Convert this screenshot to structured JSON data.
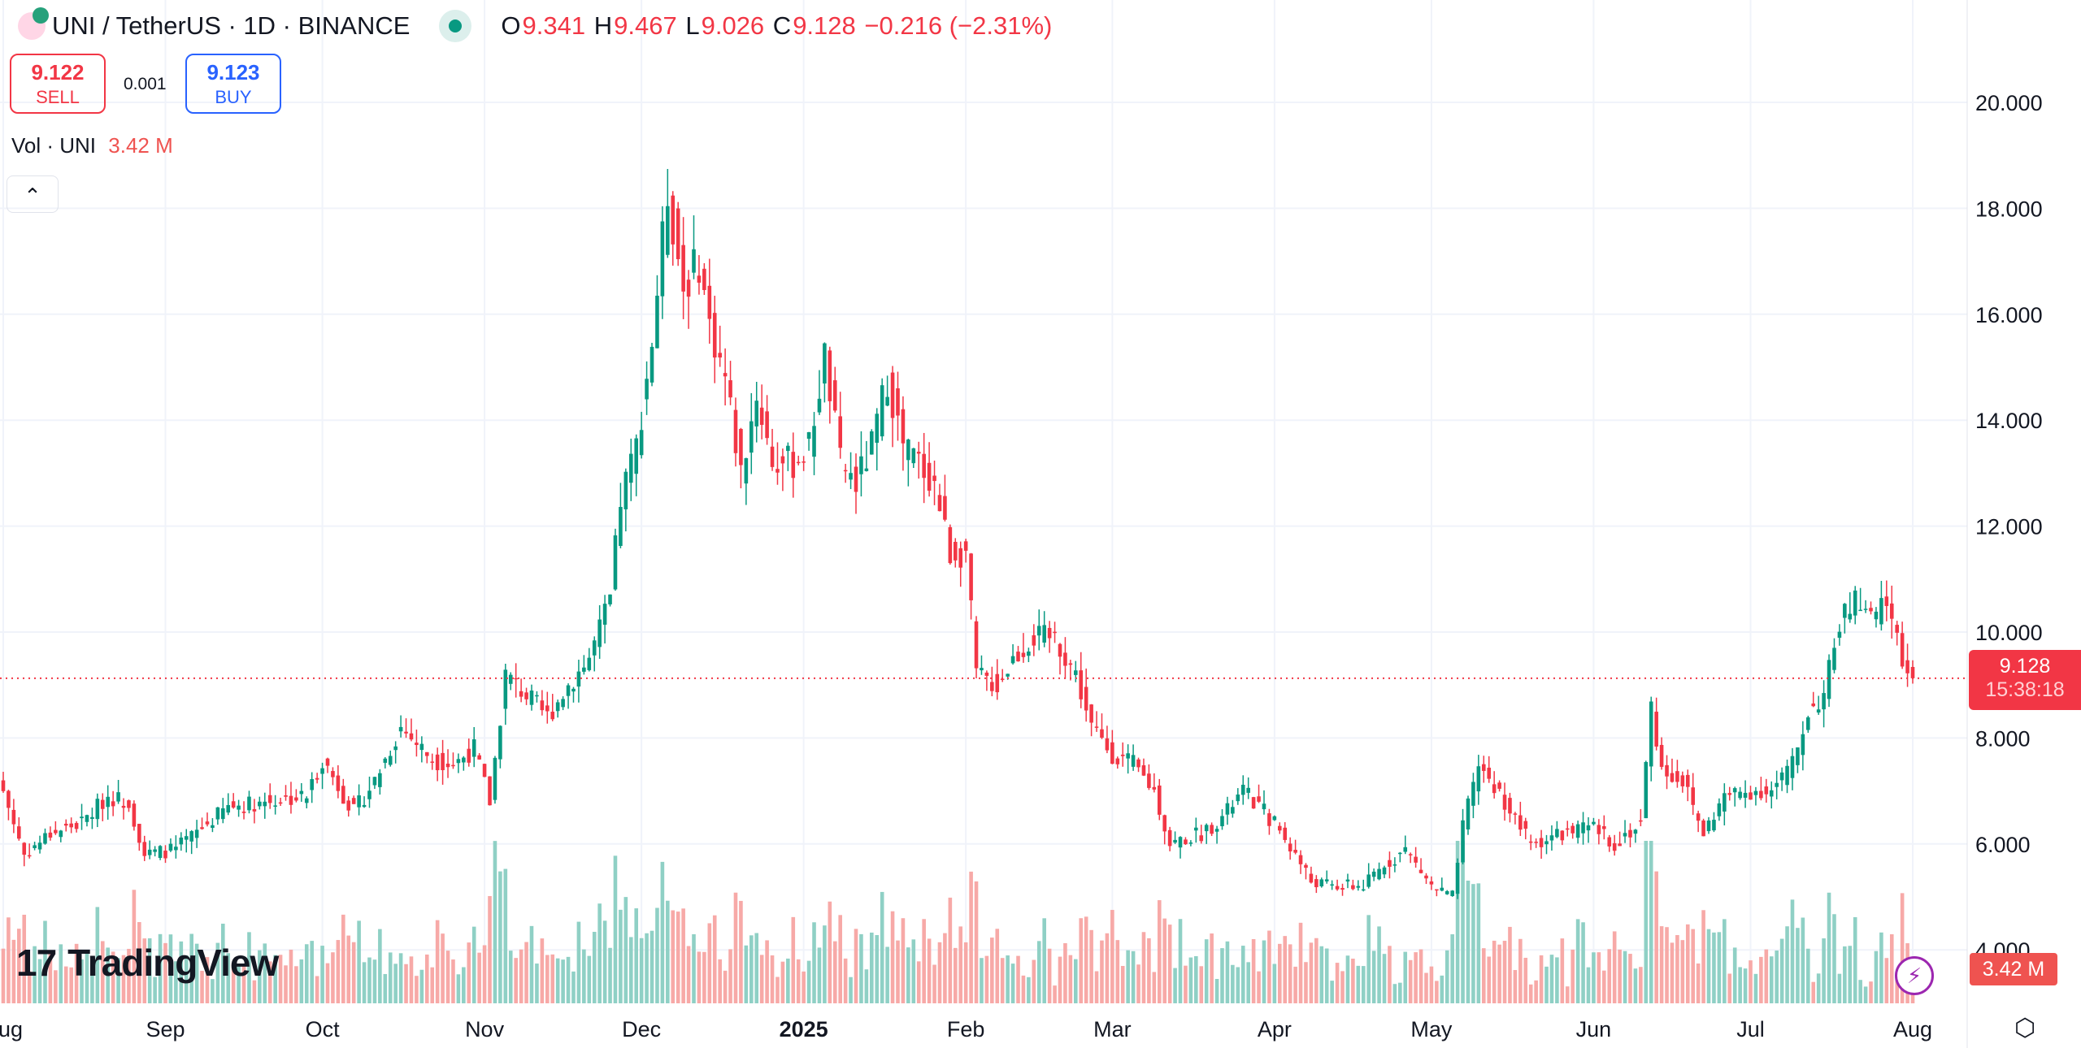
{
  "header": {
    "symbol": "UNI / TetherUS · 1D · BINANCE",
    "o_label": "O",
    "o": "9.341",
    "h_label": "H",
    "h": "9.467",
    "l_label": "L",
    "l": "9.026",
    "c_label": "C",
    "c": "9.128",
    "change": "−0.216 (−2.31%)"
  },
  "quote": {
    "sell_price": "9.122",
    "sell_label": "SELL",
    "spread": "0.001",
    "buy_price": "9.123",
    "buy_label": "BUY"
  },
  "volume_legend": {
    "label": "Vol · UNI",
    "value": "3.42 M"
  },
  "last_price": {
    "price": "9.128",
    "countdown": "15:38:18"
  },
  "volume_badge": "3.42 M",
  "logo_text": "TradingView",
  "colors": {
    "up": "#089981",
    "down": "#f23645",
    "up_vol": "#8fd0c5",
    "down_vol": "#f7a9a7"
  },
  "chart_data": {
    "type": "candlestick",
    "title": "UNI / TetherUS · 1D · BINANCE",
    "x_start": "2024-08-01",
    "x_end": "2025-08-01",
    "ylim": [
      3.5,
      20.8
    ],
    "y_ticks": [
      "20.000",
      "18.000",
      "16.000",
      "14.000",
      "12.000",
      "10.000",
      "8.000",
      "6.000",
      "4.000"
    ],
    "y_tick_values": [
      20,
      18,
      16,
      14,
      12,
      10,
      8,
      6,
      4
    ],
    "x_ticks": [
      {
        "label": "Aug",
        "day": 0
      },
      {
        "label": "Sep",
        "day": 31
      },
      {
        "label": "Oct",
        "day": 61
      },
      {
        "label": "Nov",
        "day": 92
      },
      {
        "label": "Dec",
        "day": 122
      },
      {
        "label": "2025",
        "day": 153,
        "bold": true
      },
      {
        "label": "Feb",
        "day": 184
      },
      {
        "label": "Mar",
        "day": 212
      },
      {
        "label": "Apr",
        "day": 243
      },
      {
        "label": "May",
        "day": 273
      },
      {
        "label": "Jun",
        "day": 304
      },
      {
        "label": "Jul",
        "day": 334
      },
      {
        "label": "Aug",
        "day": 365
      }
    ],
    "close_anchors": [
      [
        0,
        7.0
      ],
      [
        4,
        5.8
      ],
      [
        9,
        6.2
      ],
      [
        15,
        6.4
      ],
      [
        20,
        6.9
      ],
      [
        24,
        6.8
      ],
      [
        27,
        5.8
      ],
      [
        33,
        5.9
      ],
      [
        38,
        6.3
      ],
      [
        43,
        6.7
      ],
      [
        50,
        6.8
      ],
      [
        58,
        6.9
      ],
      [
        61,
        7.6
      ],
      [
        67,
        6.6
      ],
      [
        71,
        7.2
      ],
      [
        76,
        8.2
      ],
      [
        82,
        7.6
      ],
      [
        86,
        7.5
      ],
      [
        90,
        7.8
      ],
      [
        93,
        6.8
      ],
      [
        96,
        9.2
      ],
      [
        100,
        8.8
      ],
      [
        104,
        8.4
      ],
      [
        108,
        9.0
      ],
      [
        112,
        9.5
      ],
      [
        116,
        10.6
      ],
      [
        118,
        12.5
      ],
      [
        121,
        13.5
      ],
      [
        124,
        15.5
      ],
      [
        127,
        18.3
      ],
      [
        130,
        16.5
      ],
      [
        133,
        17.0
      ],
      [
        135,
        15.8
      ],
      [
        138,
        14.8
      ],
      [
        141,
        13.0
      ],
      [
        144,
        14.5
      ],
      [
        147,
        13.2
      ],
      [
        151,
        13.2
      ],
      [
        154,
        13.5
      ],
      [
        157,
        15.2
      ],
      [
        160,
        13.2
      ],
      [
        163,
        12.8
      ],
      [
        166,
        13.5
      ],
      [
        169,
        14.8
      ],
      [
        172,
        13.5
      ],
      [
        175,
        13.2
      ],
      [
        178,
        12.8
      ],
      [
        181,
        11.5
      ],
      [
        184,
        11.5
      ],
      [
        186,
        9.2
      ],
      [
        190,
        9.0
      ],
      [
        193,
        9.5
      ],
      [
        197,
        9.9
      ],
      [
        201,
        9.9
      ],
      [
        205,
        9.2
      ],
      [
        208,
        8.2
      ],
      [
        212,
        7.7
      ],
      [
        216,
        7.5
      ],
      [
        220,
        7.0
      ],
      [
        223,
        6.0
      ],
      [
        229,
        6.2
      ],
      [
        233,
        6.5
      ],
      [
        237,
        7.0
      ],
      [
        243,
        6.4
      ],
      [
        247,
        5.8
      ],
      [
        250,
        5.3
      ],
      [
        254,
        5.2
      ],
      [
        260,
        5.2
      ],
      [
        264,
        5.6
      ],
      [
        268,
        5.9
      ],
      [
        273,
        5.2
      ],
      [
        277,
        5.0
      ],
      [
        279,
        6.3
      ],
      [
        282,
        7.5
      ],
      [
        287,
        6.8
      ],
      [
        292,
        6.0
      ],
      [
        298,
        6.2
      ],
      [
        304,
        6.3
      ],
      [
        308,
        6.0
      ],
      [
        313,
        6.4
      ],
      [
        315,
        8.6
      ],
      [
        317,
        7.4
      ],
      [
        321,
        7.2
      ],
      [
        325,
        6.2
      ],
      [
        329,
        6.9
      ],
      [
        334,
        7.0
      ],
      [
        338,
        7.0
      ],
      [
        342,
        7.5
      ],
      [
        345,
        8.5
      ],
      [
        348,
        8.8
      ],
      [
        351,
        10.2
      ],
      [
        354,
        10.6
      ],
      [
        357,
        10.2
      ],
      [
        360,
        10.6
      ],
      [
        363,
        9.5
      ],
      [
        365,
        9.128
      ]
    ],
    "last_candle": {
      "open": 9.341,
      "high": 9.467,
      "low": 9.026,
      "close": 9.128,
      "volume_m": 3.42
    }
  }
}
